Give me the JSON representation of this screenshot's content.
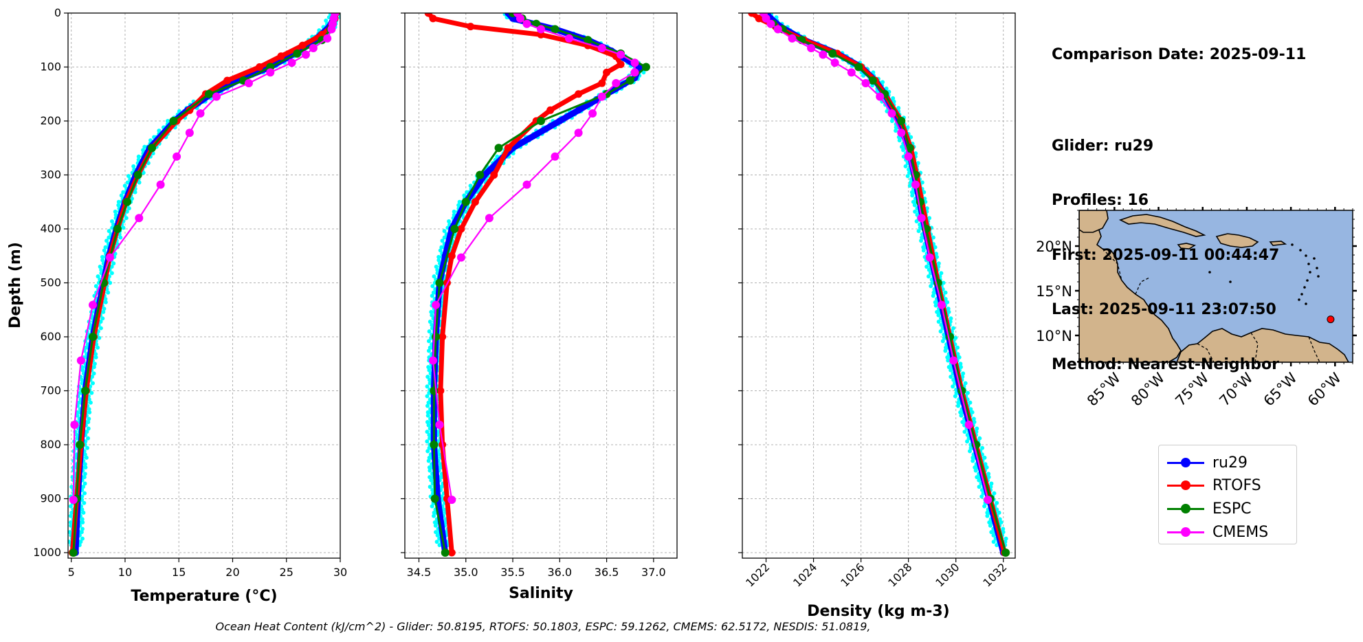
{
  "info": {
    "lines": [
      "Comparison Date: 2025-09-11",
      "",
      "Glider: ru29",
      "Profiles: 16",
      "First: 2025-09-11 00:44:47",
      "Last: 2025-09-11 23:07:50",
      "Method: Nearest-Neighbor"
    ]
  },
  "footer": {
    "text": "Ocean Heat Content (kJ/cm^2) - Glider: 50.8195,  RTOFS: 50.1803,  ESPC: 59.1262,  CMEMS: 62.5172,  NESDIS: 51.0819,"
  },
  "legend": {
    "items": [
      {
        "label": "ru29",
        "color": "#0000ff"
      },
      {
        "label": "RTOFS",
        "color": "#ff0000"
      },
      {
        "label": "ESPC",
        "color": "#008000"
      },
      {
        "label": "CMEMS",
        "color": "#ff00ff"
      }
    ]
  },
  "colors": {
    "glider": "#0000ff",
    "glider_scatter": "#00ffff",
    "rtofs": "#ff0000",
    "espc": "#008000",
    "cmems": "#ff00ff",
    "ocean": "#97b6e1",
    "land": "#d2b48c"
  },
  "chart_data": [
    {
      "type": "line",
      "title": "",
      "xlabel": "Temperature (°C)",
      "ylabel": "Depth (m)",
      "xlim": [
        4.7,
        30
      ],
      "ylim": [
        1000,
        0
      ],
      "xticks": [
        "5",
        "10",
        "15",
        "20",
        "25",
        "30"
      ],
      "xtick_values": [
        5,
        10,
        15,
        20,
        25,
        30
      ],
      "yticks": [
        "0",
        "100",
        "200",
        "300",
        "400",
        "500",
        "600",
        "700",
        "800",
        "900",
        "1000"
      ],
      "ytick_values": [
        0,
        100,
        200,
        300,
        400,
        500,
        600,
        700,
        800,
        900,
        1000
      ],
      "grid": true,
      "series": [
        {
          "name": "ru29",
          "style": "glider",
          "depth": [
            0,
            10,
            25,
            40,
            60,
            80,
            100,
            120,
            150,
            180,
            200,
            250,
            300,
            350,
            400,
            450,
            500,
            600,
            700,
            800,
            900,
            1000
          ],
          "values": [
            29.5,
            29.4,
            29.0,
            28.2,
            27.0,
            25.3,
            23.5,
            21.0,
            18.0,
            15.8,
            14.6,
            12.3,
            11.0,
            10.0,
            9.2,
            8.5,
            8.0,
            7.0,
            6.3,
            5.9,
            5.6,
            5.4
          ]
        },
        {
          "name": "RTOFS",
          "style": "rtofs",
          "depth": [
            0,
            10,
            25,
            40,
            60,
            80,
            100,
            125,
            150,
            180,
            200,
            250,
            300,
            350,
            400,
            450,
            500,
            600,
            700,
            800,
            900,
            1000
          ],
          "values": [
            29.6,
            29.5,
            29.2,
            28.3,
            26.5,
            24.5,
            22.5,
            19.5,
            17.5,
            16.0,
            14.8,
            12.5,
            11.2,
            10.1,
            9.3,
            8.6,
            8.1,
            7.1,
            6.4,
            5.9,
            5.5,
            5.1
          ]
        },
        {
          "name": "ESPC",
          "style": "espc",
          "depth": [
            0,
            10,
            20,
            30,
            50,
            75,
            100,
            125,
            150,
            200,
            250,
            300,
            350,
            400,
            500,
            600,
            700,
            800,
            900,
            1000
          ],
          "values": [
            29.5,
            29.4,
            29.3,
            29.1,
            28.3,
            26.0,
            23.5,
            21.0,
            17.8,
            14.5,
            12.5,
            11.2,
            10.2,
            9.3,
            8.0,
            7.0,
            6.3,
            5.8,
            5.5,
            5.2
          ]
        },
        {
          "name": "CMEMS",
          "style": "cmems",
          "depth": [
            0,
            10,
            20,
            30,
            47,
            65,
            77,
            92,
            110,
            130,
            155,
            186,
            222,
            266,
            318,
            380,
            453,
            541,
            644,
            763,
            902
          ],
          "values": [
            29.5,
            29.4,
            29.3,
            29.2,
            28.8,
            27.5,
            26.8,
            25.5,
            23.5,
            21.5,
            18.5,
            17.0,
            16.0,
            14.8,
            13.3,
            11.3,
            8.6,
            7.0,
            5.9,
            5.3,
            5.2
          ]
        }
      ]
    },
    {
      "type": "line",
      "title": "",
      "xlabel": "Salinity",
      "ylabel": "",
      "xlim": [
        34.35,
        37.25
      ],
      "ylim": [
        1000,
        0
      ],
      "xticks": [
        "34.5",
        "35.0",
        "35.5",
        "36.0",
        "36.5",
        "37.0"
      ],
      "xtick_values": [
        34.5,
        35.0,
        35.5,
        36.0,
        36.5,
        37.0
      ],
      "yticks": [],
      "ytick_values": [
        0,
        100,
        200,
        300,
        400,
        500,
        600,
        700,
        800,
        900,
        1000
      ],
      "grid": true,
      "series": [
        {
          "name": "ru29",
          "style": "glider",
          "depth": [
            0,
            10,
            30,
            50,
            70,
            90,
            100,
            120,
            140,
            160,
            180,
            200,
            250,
            300,
            350,
            400,
            450,
            500,
            600,
            700,
            800,
            900,
            1000
          ],
          "values": [
            35.45,
            35.5,
            35.95,
            36.3,
            36.55,
            36.75,
            36.85,
            36.8,
            36.6,
            36.4,
            36.2,
            36.0,
            35.5,
            35.2,
            35.0,
            34.85,
            34.78,
            34.72,
            34.68,
            34.66,
            34.66,
            34.7,
            34.78
          ]
        },
        {
          "name": "RTOFS",
          "style": "rtofs",
          "depth": [
            0,
            10,
            25,
            40,
            60,
            80,
            95,
            110,
            130,
            150,
            180,
            200,
            250,
            300,
            350,
            400,
            450,
            500,
            600,
            700,
            800,
            900,
            1000
          ],
          "values": [
            34.6,
            34.65,
            35.05,
            35.8,
            36.3,
            36.6,
            36.65,
            36.5,
            36.45,
            36.2,
            35.9,
            35.75,
            35.45,
            35.3,
            35.1,
            34.95,
            34.85,
            34.8,
            34.75,
            34.73,
            34.75,
            34.8,
            34.85
          ]
        },
        {
          "name": "ESPC",
          "style": "espc",
          "depth": [
            0,
            10,
            20,
            30,
            50,
            75,
            100,
            125,
            150,
            200,
            250,
            300,
            350,
            400,
            500,
            600,
            700,
            800,
            900,
            1000
          ],
          "values": [
            35.5,
            35.6,
            35.75,
            35.95,
            36.3,
            36.65,
            36.92,
            36.75,
            36.5,
            35.8,
            35.35,
            35.15,
            35.0,
            34.88,
            34.72,
            34.68,
            34.66,
            34.66,
            34.67,
            34.78
          ]
        },
        {
          "name": "CMEMS",
          "style": "cmems",
          "depth": [
            0,
            10,
            20,
            30,
            47,
            65,
            77,
            92,
            110,
            130,
            155,
            186,
            222,
            266,
            318,
            380,
            453,
            541,
            644,
            763,
            902
          ],
          "values": [
            35.55,
            35.58,
            35.65,
            35.8,
            36.1,
            36.45,
            36.65,
            36.8,
            36.8,
            36.6,
            36.45,
            36.35,
            36.2,
            35.95,
            35.65,
            35.25,
            34.95,
            34.68,
            34.65,
            34.72,
            34.85
          ]
        }
      ]
    },
    {
      "type": "line",
      "title": "",
      "xlabel": "Density (kg m-3)",
      "ylabel": "",
      "xlim": [
        1021.0,
        1032.5
      ],
      "ylim": [
        1000,
        0
      ],
      "xticks": [
        "1022",
        "1024",
        "1026",
        "1028",
        "1030",
        "1032"
      ],
      "xtick_values": [
        1022,
        1024,
        1026,
        1028,
        1030,
        1032
      ],
      "yticks": [],
      "ytick_values": [
        0,
        100,
        200,
        300,
        400,
        500,
        600,
        700,
        800,
        900,
        1000
      ],
      "grid": true,
      "series": [
        {
          "name": "ru29",
          "style": "glider",
          "depth": [
            0,
            10,
            25,
            50,
            75,
            100,
            125,
            150,
            200,
            250,
            300,
            400,
            500,
            600,
            700,
            800,
            900,
            1000
          ],
          "values": [
            1022.0,
            1022.2,
            1022.6,
            1023.6,
            1025.0,
            1026.0,
            1026.6,
            1027.0,
            1027.6,
            1028.0,
            1028.25,
            1028.7,
            1029.2,
            1029.7,
            1030.2,
            1030.8,
            1031.4,
            1032.0
          ]
        },
        {
          "name": "RTOFS",
          "style": "rtofs",
          "depth": [
            0,
            10,
            25,
            50,
            75,
            100,
            125,
            150,
            200,
            250,
            300,
            400,
            500,
            600,
            700,
            800,
            900,
            1000
          ],
          "values": [
            1021.4,
            1021.7,
            1022.4,
            1023.6,
            1025.0,
            1026.0,
            1026.6,
            1027.0,
            1027.7,
            1028.1,
            1028.35,
            1028.8,
            1029.25,
            1029.75,
            1030.25,
            1030.85,
            1031.45,
            1032.05
          ]
        },
        {
          "name": "ESPC",
          "style": "espc",
          "depth": [
            0,
            10,
            20,
            30,
            50,
            75,
            100,
            125,
            150,
            200,
            250,
            300,
            350,
            400,
            500,
            600,
            700,
            800,
            900,
            1000
          ],
          "values": [
            1021.9,
            1022.0,
            1022.3,
            1022.7,
            1023.5,
            1024.8,
            1025.9,
            1026.5,
            1027.0,
            1027.7,
            1028.05,
            1028.3,
            1028.5,
            1028.75,
            1029.25,
            1029.75,
            1030.25,
            1030.85,
            1031.45,
            1032.1
          ]
        },
        {
          "name": "CMEMS",
          "style": "cmems",
          "depth": [
            0,
            10,
            20,
            30,
            47,
            65,
            77,
            92,
            110,
            130,
            155,
            186,
            222,
            266,
            318,
            380,
            453,
            541,
            644,
            763,
            902
          ],
          "values": [
            1021.9,
            1022.0,
            1022.2,
            1022.5,
            1023.1,
            1023.9,
            1024.4,
            1024.9,
            1025.6,
            1026.2,
            1026.8,
            1027.3,
            1027.7,
            1028.0,
            1028.3,
            1028.55,
            1028.9,
            1029.4,
            1029.9,
            1030.55,
            1031.35
          ]
        }
      ]
    },
    {
      "type": "map",
      "xticks": [
        "85°W",
        "80°W",
        "75°W",
        "70°W",
        "65°W",
        "60°W"
      ],
      "xtick_values": [
        -85,
        -80,
        -75,
        -70,
        -65,
        -60
      ],
      "yticks": [
        "20°N",
        "15°N",
        "10°N"
      ],
      "ytick_values": [
        20,
        15,
        10
      ],
      "lon_range": [
        -89,
        -58
      ],
      "lat_range": [
        7,
        24
      ],
      "glider_position": {
        "lon": -60.5,
        "lat": 11.8
      }
    }
  ]
}
